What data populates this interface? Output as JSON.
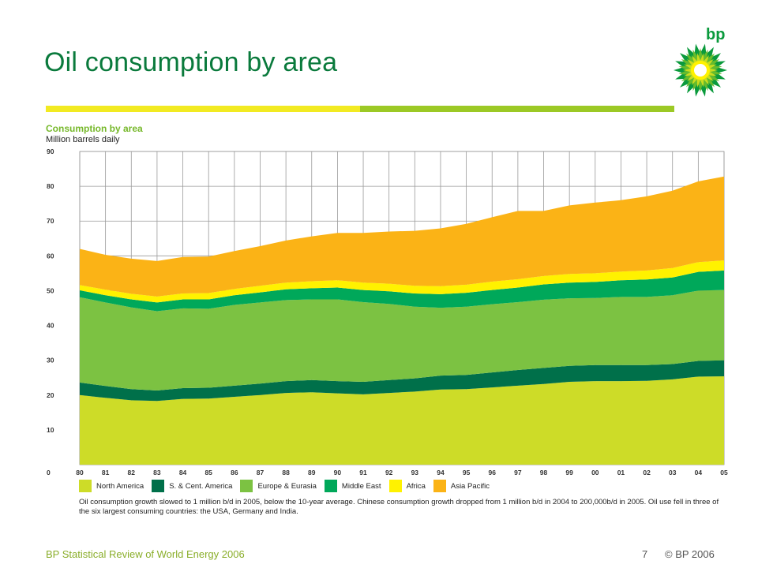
{
  "slide": {
    "title": "Oil consumption by area",
    "logo_text": "bp",
    "footer_left": "BP Statistical Review of World Energy 2006",
    "page_number": "7",
    "copyright": "© BP 2006"
  },
  "colors": {
    "title": "#0a7a3c",
    "rule_yellow": "#f2ea22",
    "rule_green": "#9cc925"
  },
  "chart_data": {
    "type": "area",
    "stacked": true,
    "title": "Consumption by area",
    "ylabel": "Million barrels daily",
    "xlabel": "",
    "ylim": [
      0,
      90
    ],
    "yticks": [
      0,
      10,
      20,
      30,
      40,
      50,
      60,
      70,
      80,
      90
    ],
    "grid": true,
    "legend_position": "bottom",
    "categories": [
      "80",
      "81",
      "82",
      "83",
      "84",
      "85",
      "86",
      "87",
      "88",
      "89",
      "90",
      "91",
      "92",
      "93",
      "94",
      "95",
      "96",
      "97",
      "98",
      "99",
      "00",
      "01",
      "02",
      "03",
      "04",
      "05"
    ],
    "series": [
      {
        "name": "North America",
        "color": "#cddc28",
        "values": [
          20.0,
          19.2,
          18.5,
          18.3,
          18.9,
          19.0,
          19.5,
          20.0,
          20.6,
          20.8,
          20.5,
          20.2,
          20.6,
          21.0,
          21.6,
          21.7,
          22.2,
          22.7,
          23.2,
          23.8,
          24.0,
          24.0,
          24.1,
          24.5,
          25.3,
          25.4
        ]
      },
      {
        "name": "S. & Cent. America",
        "color": "#00704a",
        "values": [
          3.6,
          3.4,
          3.2,
          3.0,
          3.1,
          3.1,
          3.2,
          3.3,
          3.4,
          3.5,
          3.5,
          3.6,
          3.7,
          3.8,
          4.0,
          4.1,
          4.3,
          4.5,
          4.6,
          4.6,
          4.6,
          4.6,
          4.5,
          4.4,
          4.5,
          4.6
        ]
      },
      {
        "name": "Europe & Eurasia",
        "color": "#7cc242",
        "values": [
          24.5,
          24.0,
          23.5,
          22.8,
          22.9,
          22.7,
          23.2,
          23.3,
          23.3,
          23.2,
          23.5,
          22.9,
          21.9,
          20.6,
          19.5,
          19.6,
          19.6,
          19.5,
          19.6,
          19.4,
          19.3,
          19.6,
          19.6,
          19.8,
          20.2,
          20.2
        ]
      },
      {
        "name": "Middle East",
        "color": "#00a85a",
        "values": [
          2.0,
          2.1,
          2.3,
          2.5,
          2.6,
          2.7,
          2.8,
          2.9,
          3.1,
          3.2,
          3.4,
          3.5,
          3.6,
          3.8,
          3.9,
          4.0,
          4.1,
          4.2,
          4.4,
          4.5,
          4.6,
          4.8,
          5.0,
          5.1,
          5.4,
          5.6
        ]
      },
      {
        "name": "Africa",
        "color": "#fff200",
        "values": [
          1.5,
          1.6,
          1.6,
          1.7,
          1.7,
          1.8,
          1.8,
          1.9,
          1.9,
          2.0,
          2.1,
          2.1,
          2.2,
          2.2,
          2.3,
          2.3,
          2.4,
          2.4,
          2.4,
          2.5,
          2.5,
          2.5,
          2.6,
          2.7,
          2.8,
          2.9
        ]
      },
      {
        "name": "Asia Pacific",
        "color": "#fbb316",
        "values": [
          10.4,
          10.0,
          10.1,
          10.2,
          10.5,
          10.5,
          10.9,
          11.4,
          12.1,
          12.9,
          13.6,
          14.3,
          15.0,
          15.8,
          16.6,
          17.5,
          18.5,
          19.6,
          18.7,
          19.7,
          20.3,
          20.5,
          21.3,
          22.2,
          23.2,
          24.1
        ]
      }
    ],
    "caption": "Oil consumption growth slowed to 1 million b/d in 2005, below the 10-year average. Chinese consumption growth dropped from 1 million b/d in 2004 to 200,000b/d in 2005. Oil use fell in three of the six largest consuming countries: the USA, Germany and India."
  }
}
